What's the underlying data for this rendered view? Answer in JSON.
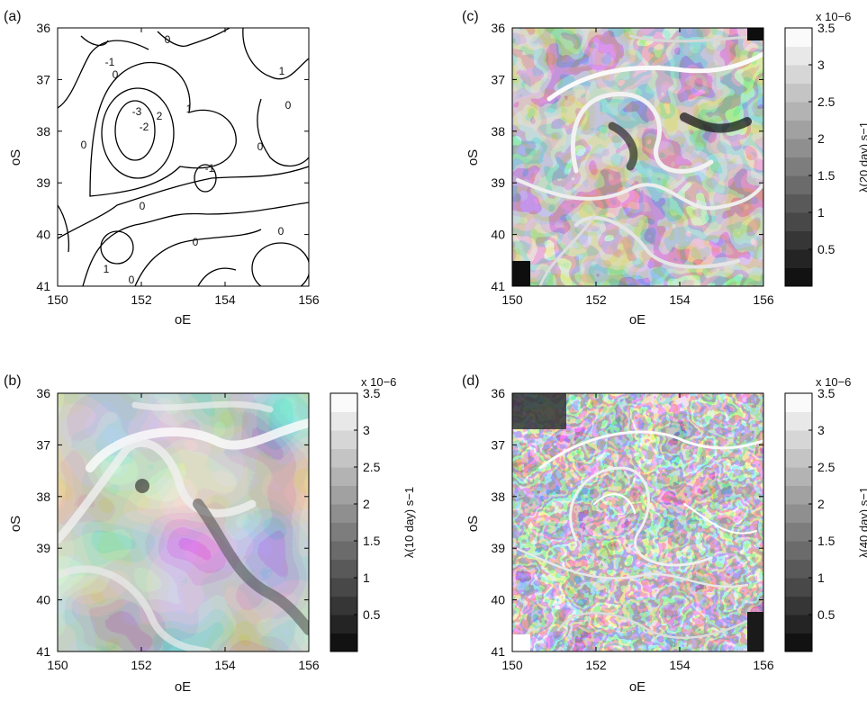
{
  "chart_data": [
    {
      "type": "contour",
      "panel_label": "(a)",
      "xlabel": "oE",
      "ylabel": "oS",
      "xlim": [
        150,
        156
      ],
      "ylim": [
        36,
        41
      ],
      "xticks": [
        "150",
        "152",
        "154",
        "156"
      ],
      "yticks": [
        "36",
        "37",
        "38",
        "39",
        "40",
        "41"
      ],
      "contour_labels": [
        "-3",
        "-2",
        "-1",
        "0",
        "0",
        "0",
        "0",
        "0",
        "0",
        "0",
        "0",
        "0",
        "1",
        "1",
        "1",
        "-1",
        "2"
      ]
    },
    {
      "type": "heatmap",
      "panel_label": "(b)",
      "xlabel": "oE",
      "ylabel": "oS",
      "xlim": [
        150,
        156
      ],
      "ylim": [
        36,
        41
      ],
      "xticks": [
        "150",
        "152",
        "154",
        "156"
      ],
      "yticks": [
        "36",
        "37",
        "38",
        "39",
        "40",
        "41"
      ],
      "colorbar": {
        "label": "λ(10 day) s−1",
        "scale_label": "x 10−6",
        "range": [
          0,
          3.5
        ],
        "ticks": [
          "0.5",
          "1",
          "1.5",
          "2",
          "2.5",
          "3",
          "3.5"
        ],
        "levels": 14,
        "colormap": "grayscale"
      }
    },
    {
      "type": "heatmap",
      "panel_label": "(c)",
      "xlabel": "oE",
      "ylabel": "oS",
      "xlim": [
        150,
        156
      ],
      "ylim": [
        36,
        41
      ],
      "xticks": [
        "150",
        "152",
        "154",
        "156"
      ],
      "yticks": [
        "36",
        "37",
        "38",
        "39",
        "40",
        "41"
      ],
      "colorbar": {
        "label": "λ(20 day) s−1",
        "scale_label": "x 10−6",
        "range": [
          0,
          3.5
        ],
        "ticks": [
          "0.5",
          "1",
          "1.5",
          "2",
          "2.5",
          "3",
          "3.5"
        ],
        "levels": 14,
        "colormap": "grayscale"
      }
    },
    {
      "type": "heatmap",
      "panel_label": "(d)",
      "xlabel": "oE",
      "ylabel": "oS",
      "xlim": [
        150,
        156
      ],
      "ylim": [
        36,
        41
      ],
      "xticks": [
        "150",
        "152",
        "154",
        "156"
      ],
      "yticks": [
        "36",
        "37",
        "38",
        "39",
        "40",
        "41"
      ],
      "colorbar": {
        "label": "λ(40 day) s−1",
        "scale_label": "x 10−6",
        "range": [
          0,
          3.5
        ],
        "ticks": [
          "0.5",
          "1",
          "1.5",
          "2",
          "2.5",
          "3",
          "3.5"
        ],
        "levels": 14,
        "colormap": "grayscale"
      }
    }
  ]
}
